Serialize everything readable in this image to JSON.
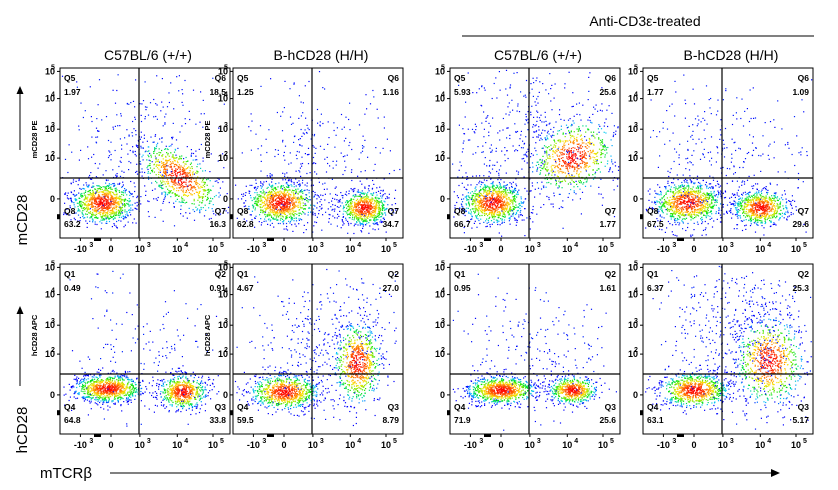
{
  "header": {
    "treatment_label": "Anti-CD3ε-treated",
    "columns": [
      "C57BL/6 (+/+)",
      "B-hCD28 (H/H)",
      "C57BL/6 (+/+)",
      "B-hCD28 (H/H)"
    ]
  },
  "row_labels": [
    "mCD28",
    "hCD28"
  ],
  "x_label": "mTCRβ",
  "y_tick_labels": [
    "0",
    "10",
    "10",
    "10",
    "10"
  ],
  "y_tick_exponents": [
    "",
    "2",
    "3",
    "4",
    "5"
  ],
  "x_tick_labels": [
    "-10",
    "0",
    "10",
    "10",
    "10"
  ],
  "x_tick_exponents": [
    "3",
    "",
    "3",
    "4",
    "5"
  ],
  "colors": {
    "low": "#0000ff",
    "mid": "#00ff00",
    "high": "#ff0000",
    "gate": "#000000"
  },
  "chart_data": [
    {
      "type": "scatter",
      "row": 0,
      "col": 0,
      "ylabel": "mCD28 PE",
      "quadrants": [
        {
          "name": "Q5",
          "value": "1.97"
        },
        {
          "name": "Q6",
          "value": "18.5"
        },
        {
          "name": "Q7",
          "value": "16.3"
        },
        {
          "name": "Q8",
          "value": "63.2"
        }
      ]
    },
    {
      "type": "scatter",
      "row": 0,
      "col": 1,
      "ylabel": "mCD28 PE",
      "quadrants": [
        {
          "name": "Q5",
          "value": "1.25"
        },
        {
          "name": "Q6",
          "value": "1.16"
        },
        {
          "name": "Q7",
          "value": "34.7"
        },
        {
          "name": "Q8",
          "value": "62.8"
        }
      ]
    },
    {
      "type": "scatter",
      "row": 0,
      "col": 2,
      "ylabel": "",
      "quadrants": [
        {
          "name": "Q5",
          "value": "5.93"
        },
        {
          "name": "Q6",
          "value": "25.6"
        },
        {
          "name": "Q7",
          "value": "1.77"
        },
        {
          "name": "Q8",
          "value": "66.7"
        }
      ]
    },
    {
      "type": "scatter",
      "row": 0,
      "col": 3,
      "ylabel": "",
      "quadrants": [
        {
          "name": "Q5",
          "value": "1.77"
        },
        {
          "name": "Q6",
          "value": "1.09"
        },
        {
          "name": "Q7",
          "value": "29.6"
        },
        {
          "name": "Q8",
          "value": "67.5"
        }
      ]
    },
    {
      "type": "scatter",
      "row": 1,
      "col": 0,
      "ylabel": "hCD28 APC",
      "quadrants": [
        {
          "name": "Q1",
          "value": "0.49"
        },
        {
          "name": "Q2",
          "value": "0.91"
        },
        {
          "name": "Q3",
          "value": "33.8"
        },
        {
          "name": "Q4",
          "value": "64.8"
        }
      ]
    },
    {
      "type": "scatter",
      "row": 1,
      "col": 1,
      "ylabel": "hCD28 APC",
      "quadrants": [
        {
          "name": "Q1",
          "value": "4.67"
        },
        {
          "name": "Q2",
          "value": "27.0"
        },
        {
          "name": "Q3",
          "value": "8.79"
        },
        {
          "name": "Q4",
          "value": "59.5"
        }
      ]
    },
    {
      "type": "scatter",
      "row": 1,
      "col": 2,
      "ylabel": "",
      "quadrants": [
        {
          "name": "Q1",
          "value": "0.95"
        },
        {
          "name": "Q2",
          "value": "1.61"
        },
        {
          "name": "Q3",
          "value": "25.6"
        },
        {
          "name": "Q4",
          "value": "71.9"
        }
      ]
    },
    {
      "type": "scatter",
      "row": 1,
      "col": 3,
      "ylabel": "",
      "quadrants": [
        {
          "name": "Q1",
          "value": "6.37"
        },
        {
          "name": "Q2",
          "value": "25.3"
        },
        {
          "name": "Q3",
          "value": "5.17"
        },
        {
          "name": "Q4",
          "value": "63.1"
        }
      ]
    }
  ]
}
